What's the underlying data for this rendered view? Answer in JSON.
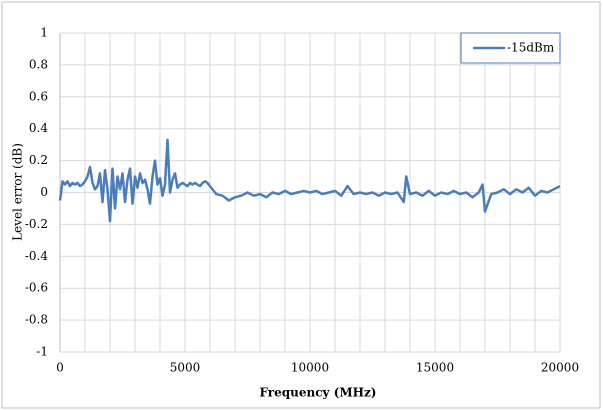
{
  "chart_data": {
    "type": "line",
    "x_label": "Frequency (MHz)",
    "y_label": "Level error (dB)",
    "xlim": [
      0,
      20000
    ],
    "xticks": [
      0,
      5000,
      10000,
      15000,
      20000
    ],
    "xgrid": [
      0,
      1000,
      2000,
      3000,
      4000,
      5000,
      6000,
      7000,
      8000,
      9000,
      10000,
      11000,
      12000,
      13000,
      14000,
      15000,
      16000,
      17000,
      18000,
      19000,
      20000
    ],
    "ylim": [
      -1,
      1
    ],
    "yticks": [
      -1,
      -0.8,
      -0.6,
      -0.4,
      -0.2,
      0,
      0.2,
      0.4,
      0.6,
      0.8,
      1
    ],
    "grid": true,
    "legend": "upper right",
    "x": [
      0,
      100,
      200,
      300,
      400,
      500,
      600,
      700,
      800,
      900,
      1000,
      1100,
      1200,
      1300,
      1400,
      1500,
      1600,
      1700,
      1800,
      1900,
      2000,
      2100,
      2200,
      2300,
      2400,
      2500,
      2600,
      2700,
      2800,
      2900,
      3000,
      3100,
      3200,
      3300,
      3400,
      3500,
      3600,
      3700,
      3800,
      3900,
      4000,
      4100,
      4200,
      4300,
      4400,
      4500,
      4600,
      4700,
      4800,
      4900,
      5000,
      5100,
      5200,
      5300,
      5400,
      5500,
      5600,
      5700,
      5800,
      5900,
      6000,
      6250,
      6500,
      6750,
      7000,
      7250,
      7500,
      7750,
      8000,
      8250,
      8500,
      8750,
      9000,
      9250,
      9500,
      9750,
      10000,
      10250,
      10500,
      10750,
      11000,
      11250,
      11500,
      11750,
      12000,
      12250,
      12500,
      12750,
      13000,
      13250,
      13500,
      13750,
      13850,
      14000,
      14250,
      14500,
      14750,
      15000,
      15250,
      15500,
      15750,
      16000,
      16250,
      16500,
      16750,
      16900,
      17000,
      17250,
      17500,
      17750,
      18000,
      18250,
      18500,
      18750,
      19000,
      19250,
      19500,
      19750,
      20000
    ],
    "series": [
      {
        "name": "-15dBm",
        "color": "#4a7ebb",
        "values": [
          -0.05,
          0.07,
          0.05,
          0.07,
          0.04,
          0.06,
          0.05,
          0.06,
          0.04,
          0.05,
          0.07,
          0.1,
          0.16,
          0.06,
          0.02,
          0.04,
          0.12,
          -0.06,
          0.14,
          0.02,
          -0.18,
          0.15,
          -0.1,
          0.1,
          0.02,
          0.12,
          -0.06,
          0.08,
          0.15,
          -0.07,
          0.1,
          0.03,
          0.12,
          0.06,
          0.08,
          0.02,
          -0.07,
          0.1,
          0.2,
          0.05,
          0.09,
          -0.02,
          0.05,
          0.33,
          0.0,
          0.08,
          0.12,
          0.03,
          0.05,
          0.06,
          0.05,
          0.04,
          0.06,
          0.05,
          0.06,
          0.05,
          0.04,
          0.06,
          0.07,
          0.06,
          0.04,
          -0.01,
          -0.02,
          -0.05,
          -0.03,
          -0.02,
          0.0,
          -0.02,
          -0.01,
          -0.03,
          0.0,
          -0.01,
          0.01,
          -0.01,
          0.0,
          0.01,
          0.0,
          0.01,
          -0.01,
          0.0,
          0.01,
          -0.02,
          0.04,
          -0.01,
          0.0,
          -0.01,
          0.0,
          -0.02,
          0.0,
          -0.01,
          0.0,
          -0.06,
          0.1,
          -0.01,
          0.0,
          -0.02,
          0.01,
          -0.02,
          0.0,
          -0.01,
          0.01,
          -0.01,
          0.0,
          -0.03,
          0.0,
          0.05,
          -0.12,
          -0.01,
          0.0,
          0.02,
          -0.01,
          0.02,
          0.0,
          0.03,
          -0.02,
          0.01,
          0.0,
          0.02,
          0.04
        ]
      }
    ]
  }
}
